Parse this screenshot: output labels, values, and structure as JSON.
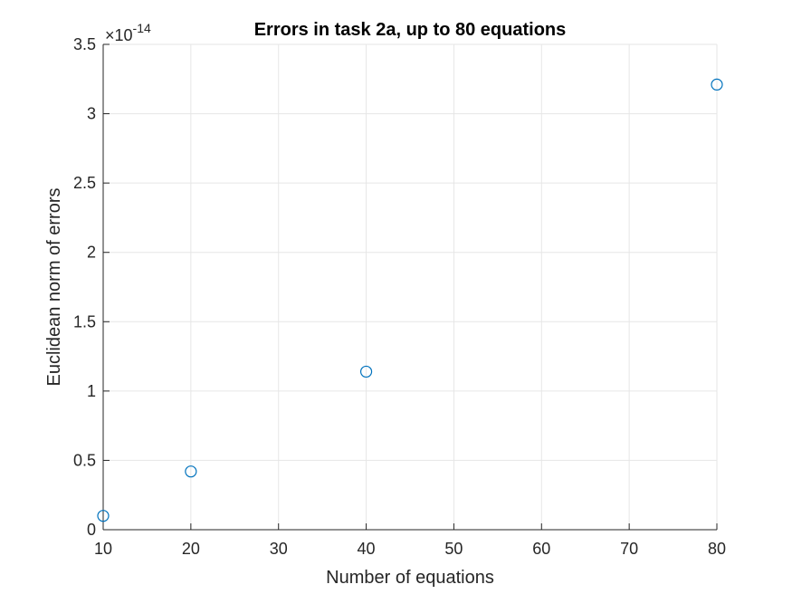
{
  "chart_data": {
    "type": "scatter",
    "title": "Errors in task 2a, up to 80 equations",
    "xlabel": "Number of equations",
    "ylabel": "Euclidean norm of errors",
    "y_exponent_base": "×10",
    "y_exponent_power": "-14",
    "xlim": [
      10,
      80
    ],
    "ylim": [
      0,
      3.5
    ],
    "xticks": [
      10,
      20,
      30,
      40,
      50,
      60,
      70,
      80
    ],
    "xtick_labels": [
      "10",
      "20",
      "30",
      "40",
      "50",
      "60",
      "70",
      "80"
    ],
    "yticks": [
      0,
      0.5,
      1,
      1.5,
      2,
      2.5,
      3,
      3.5
    ],
    "ytick_labels": [
      "0",
      "0.5",
      "1",
      "1.5",
      "2",
      "2.5",
      "3",
      "3.5"
    ],
    "grid": true,
    "marker": "circle-open",
    "color": "#0072BD",
    "series": [
      {
        "x": [
          10,
          20,
          40,
          80
        ],
        "y": [
          0.1,
          0.42,
          1.14,
          3.21
        ]
      }
    ]
  }
}
